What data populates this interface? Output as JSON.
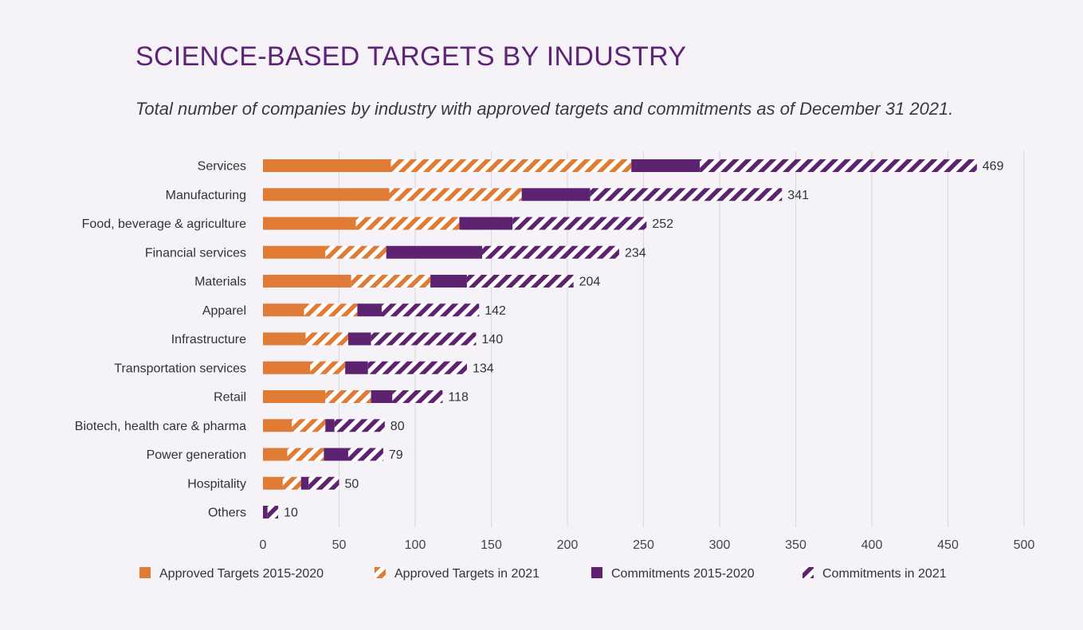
{
  "header": {
    "title": "SCIENCE-BASED TARGETS BY INDUSTRY",
    "subtitle": "Total number of companies by industry with approved targets and commitments as of December 31 2021."
  },
  "colors": {
    "orange": "#e07b36",
    "purple": "#5e2370",
    "grid": "#dcdade",
    "background": "#f5f3f7"
  },
  "chart_data": {
    "type": "bar",
    "orientation": "horizontal",
    "stacked": true,
    "categories": [
      "Services",
      "Manufacturing",
      "Food, beverage & agriculture",
      "Financial services",
      "Materials",
      "Apparel",
      "Infrastructure",
      "Transportation services",
      "Retail",
      "Biotech, health care & pharma",
      "Power generation",
      "Hospitality",
      "Others"
    ],
    "series": [
      {
        "name": "Approved Targets 2015-2020",
        "color": "orange",
        "pattern": "solid",
        "values": [
          84,
          83,
          61,
          41,
          58,
          27,
          28,
          31,
          41,
          19,
          16,
          13,
          0
        ]
      },
      {
        "name": "Approved Targets in 2021",
        "color": "orange",
        "pattern": "hatched",
        "values": [
          158,
          87,
          68,
          40,
          52,
          35,
          28,
          23,
          30,
          22,
          24,
          12,
          0
        ]
      },
      {
        "name": "Commitments 2015-2020",
        "color": "purple",
        "pattern": "solid",
        "values": [
          45,
          45,
          35,
          63,
          24,
          16,
          15,
          15,
          14,
          6,
          16,
          5,
          3
        ]
      },
      {
        "name": "Commitments in 2021",
        "color": "purple",
        "pattern": "hatched",
        "values": [
          182,
          126,
          88,
          90,
          70,
          64,
          69,
          65,
          33,
          33,
          23,
          20,
          7
        ]
      }
    ],
    "totals": [
      469,
      341,
      252,
      234,
      204,
      142,
      140,
      134,
      118,
      80,
      79,
      50,
      10
    ],
    "xlim": [
      0,
      500
    ],
    "xticks": [
      0,
      50,
      100,
      150,
      200,
      250,
      300,
      350,
      400,
      450,
      500
    ],
    "grid": true,
    "legend_position": "bottom"
  }
}
